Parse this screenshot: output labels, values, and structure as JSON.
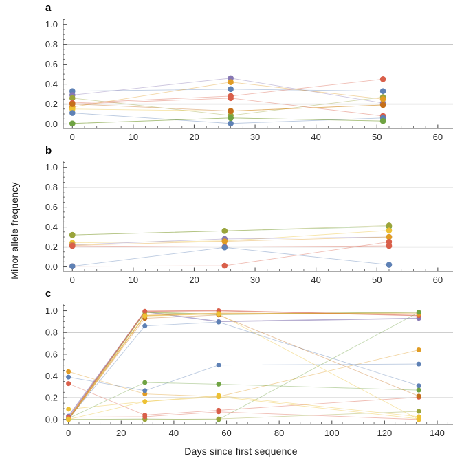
{
  "axis_labels": {
    "x": "Days since first sequence",
    "y": "Minor allele frequency"
  },
  "style": {
    "axis_color": "#555555",
    "tick_text_color": "#2b2b2b",
    "ref_line_color": "#c7c7c7",
    "background": "#ffffff",
    "palette": {
      "blue": "#5e81b5",
      "gold": "#e19c24",
      "olive": "#9aa43b",
      "red": "#d95f4a",
      "purple": "#8778b3",
      "brown": "#c56e1a",
      "yellow": "#edc134",
      "green": "#6fa343"
    }
  },
  "chart_data": [
    {
      "type": "line",
      "label": "a",
      "x_range": [
        -1.5,
        62.5
      ],
      "y_range": [
        -0.045,
        1.06
      ],
      "xticks": [
        {
          "v": 0,
          "label": "0"
        },
        {
          "v": 10,
          "label": "10"
        },
        {
          "v": 20,
          "label": "20"
        },
        {
          "v": 30,
          "label": "30"
        },
        {
          "v": 40,
          "label": "40"
        },
        {
          "v": 50,
          "label": "50"
        },
        {
          "v": 60,
          "label": "60"
        }
      ],
      "x_minor_step": 2,
      "yticks": [
        {
          "v": 0,
          "label": "0.0"
        },
        {
          "v": 0.2,
          "label": "0.2"
        },
        {
          "v": 0.4,
          "label": "0.4"
        },
        {
          "v": 0.6,
          "label": "0.6"
        },
        {
          "v": 0.8,
          "label": "0.8"
        },
        {
          "v": 1.0,
          "label": "1.0"
        }
      ],
      "y_minor_step": 0.05,
      "ref_lines": [
        0.8,
        0.2
      ],
      "x": [
        0,
        26,
        51
      ],
      "series": [
        {
          "name": "s1",
          "color": "#5e81b5",
          "values": [
            0.33,
            0.35,
            0.33
          ]
        },
        {
          "name": "s2",
          "color": "#8778b3",
          "values": [
            0.29,
            0.46,
            0.21
          ]
        },
        {
          "name": "s3",
          "color": "#9aa43b",
          "values": [
            0.26,
            0.085,
            0.27
          ]
        },
        {
          "name": "s4",
          "color": "#d95f4a",
          "values": [
            0.21,
            0.28,
            0.45
          ]
        },
        {
          "name": "s5",
          "color": "#d95f4a",
          "values": [
            0.2,
            0.26,
            0.08
          ]
        },
        {
          "name": "s6",
          "color": "#e19c24",
          "values": [
            0.17,
            0.42,
            0.25
          ]
        },
        {
          "name": "s7",
          "color": "#edc134",
          "values": [
            0.15,
            0.13,
            0.19
          ]
        },
        {
          "name": "s8",
          "color": "#5e81b5",
          "values": [
            0.11,
            0.005,
            0.06
          ]
        },
        {
          "name": "s9",
          "color": "#c56e1a",
          "values": [
            0.2,
            0.13,
            0.19
          ]
        },
        {
          "name": "s10",
          "color": "#9aa43b",
          "values": [
            0.005,
            0.06,
            0.03
          ]
        },
        {
          "name": "s11",
          "color": "#6fa343",
          "values": [
            0.005,
            0.06,
            0.03
          ]
        }
      ]
    },
    {
      "type": "line",
      "label": "b",
      "x_range": [
        -1.5,
        62.5
      ],
      "y_range": [
        -0.045,
        1.06
      ],
      "xticks": [
        {
          "v": 0,
          "label": "0"
        },
        {
          "v": 10,
          "label": "10"
        },
        {
          "v": 20,
          "label": "20"
        },
        {
          "v": 30,
          "label": "30"
        },
        {
          "v": 40,
          "label": "40"
        },
        {
          "v": 50,
          "label": "50"
        },
        {
          "v": 60,
          "label": "60"
        }
      ],
      "x_minor_step": 2,
      "yticks": [
        {
          "v": 0,
          "label": "0.0"
        },
        {
          "v": 0.2,
          "label": "0.2"
        },
        {
          "v": 0.4,
          "label": "0.4"
        },
        {
          "v": 0.6,
          "label": "0.6"
        },
        {
          "v": 0.8,
          "label": "0.8"
        },
        {
          "v": 1.0,
          "label": "1.0"
        }
      ],
      "y_minor_step": 0.05,
      "ref_lines": [
        0.8,
        0.2
      ],
      "x": [
        0,
        25,
        52
      ],
      "series": [
        {
          "name": "s1",
          "color": "#6fa343",
          "values": [
            0.32,
            0.36,
            0.405
          ]
        },
        {
          "name": "s2",
          "color": "#9aa43b",
          "values": [
            0.32,
            0.36,
            0.415
          ]
        },
        {
          "name": "s3",
          "color": "#edc134",
          "values": [
            0.24,
            0.26,
            0.365
          ]
        },
        {
          "name": "s4",
          "color": "#8778b3",
          "values": [
            0.22,
            0.28,
            0.3
          ]
        },
        {
          "name": "s5",
          "color": "#e19c24",
          "values": [
            0.215,
            0.255,
            0.3
          ]
        },
        {
          "name": "s6",
          "color": "#d95f4a",
          "values": [
            0.21,
            0.2,
            0.21
          ]
        },
        {
          "name": "s7",
          "color": "#d95f4a",
          "values": [
            0.005,
            0.01,
            0.25
          ]
        },
        {
          "name": "s8",
          "color": "#5e81b5",
          "values": [
            0.005,
            0.195,
            0.02
          ]
        }
      ]
    },
    {
      "type": "line",
      "label": "c",
      "x_range": [
        -2,
        146
      ],
      "y_range": [
        -0.045,
        1.06
      ],
      "xticks": [
        {
          "v": 0,
          "label": "0"
        },
        {
          "v": 20,
          "label": "20"
        },
        {
          "v": 40,
          "label": "40"
        },
        {
          "v": 60,
          "label": "60"
        },
        {
          "v": 80,
          "label": "80"
        },
        {
          "v": 100,
          "label": "100"
        },
        {
          "v": 120,
          "label": "120"
        },
        {
          "v": 140,
          "label": "140"
        }
      ],
      "x_minor_step": 4,
      "yticks": [
        {
          "v": 0,
          "label": "0.0"
        },
        {
          "v": 0.2,
          "label": "0.2"
        },
        {
          "v": 0.4,
          "label": "0.4"
        },
        {
          "v": 0.6,
          "label": "0.6"
        },
        {
          "v": 0.8,
          "label": "0.8"
        },
        {
          "v": 1.0,
          "label": "1.0"
        }
      ],
      "y_minor_step": 0.05,
      "ref_lines": [
        0.8,
        0.2
      ],
      "x": [
        0,
        29,
        57,
        133
      ],
      "series": [
        {
          "name": "s1",
          "color": "#e19c24",
          "values": [
            0.44,
            0.235,
            0.21,
            0.64
          ]
        },
        {
          "name": "s2",
          "color": "#5e81b5",
          "values": [
            0.39,
            0.265,
            0.5,
            0.51
          ]
        },
        {
          "name": "s3",
          "color": "#d95f4a",
          "values": [
            0.33,
            0.04,
            0.085,
            0.205
          ]
        },
        {
          "name": "s4",
          "color": "#edc134",
          "values": [
            0.095,
            0.165,
            0.22,
            0.025
          ]
        },
        {
          "name": "s5",
          "color": "#8778b3",
          "values": [
            0.03,
            0.99,
            0.9,
            0.93
          ],
          "bold": true
        },
        {
          "name": "s6",
          "color": "#9aa43b",
          "values": [
            0.005,
            0.985,
            0.965,
            0.985
          ],
          "bold": true
        },
        {
          "name": "s7",
          "color": "#d95f4a",
          "values": [
            0.01,
            0.995,
            1.0,
            0.955
          ],
          "bold": true
        },
        {
          "name": "s8",
          "color": "#e19c24",
          "values": [
            0.0,
            0.955,
            0.975,
            0.97
          ],
          "bold": true
        },
        {
          "name": "s9",
          "color": "#5e81b5",
          "values": [
            0.005,
            0.86,
            0.895,
            0.31
          ]
        },
        {
          "name": "s10",
          "color": "#6fa343",
          "values": [
            0.01,
            0.34,
            0.325,
            0.27
          ]
        },
        {
          "name": "s11",
          "color": "#c56e1a",
          "values": [
            0.0,
            0.93,
            0.96,
            0.215
          ]
        },
        {
          "name": "s12",
          "color": "#6fa343",
          "values": [
            0.0,
            0.005,
            0.0,
            0.985
          ]
        },
        {
          "name": "s13",
          "color": "#9aa43b",
          "values": [
            0.0,
            0.0,
            0.005,
            0.075
          ]
        },
        {
          "name": "s14",
          "color": "#d95f4a",
          "values": [
            0.02,
            0.025,
            0.07,
            0.0
          ]
        },
        {
          "name": "s15",
          "color": "#edc134",
          "values": [
            0.005,
            0.95,
            0.97,
            0.0
          ]
        },
        {
          "name": "s16",
          "color": "#edc134",
          "values": [
            0.0,
            0.165,
            0.21,
            0.005
          ]
        }
      ]
    }
  ]
}
